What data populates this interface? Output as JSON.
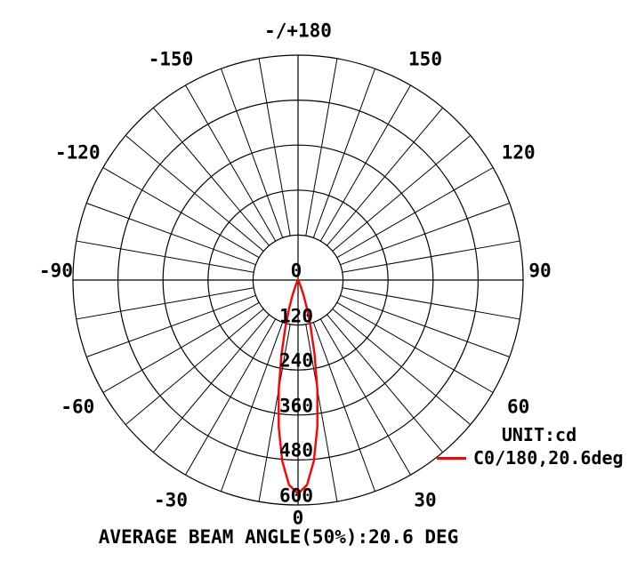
{
  "caption": {
    "text": "AVERAGE BEAM ANGLE(50%):20.6 DEG"
  },
  "legend": {
    "unit_label": "UNIT:cd",
    "series_label": "C0/180,20.6deg",
    "swatch_color": "#ff0000"
  },
  "colors": {
    "grid": "#000000",
    "text": "#000000",
    "curve": "#ff0000"
  },
  "polar": {
    "angle_labels": [
      {
        "angle_deg": 0,
        "text": "0"
      },
      {
        "angle_deg": 30,
        "text": "30"
      },
      {
        "angle_deg": 60,
        "text": "60"
      },
      {
        "angle_deg": 90,
        "text": "90"
      },
      {
        "angle_deg": 120,
        "text": "120"
      },
      {
        "angle_deg": 150,
        "text": "150"
      },
      {
        "angle_deg": 180,
        "text": "-/+180"
      },
      {
        "angle_deg": -30,
        "text": "-30"
      },
      {
        "angle_deg": -60,
        "text": "-60"
      },
      {
        "angle_deg": -90,
        "text": "-90"
      },
      {
        "angle_deg": -120,
        "text": "-120"
      },
      {
        "angle_deg": -150,
        "text": "-150"
      }
    ],
    "radial_labels": [
      {
        "value": 0,
        "text": "0"
      },
      {
        "value": 120,
        "text": "120"
      },
      {
        "value": 240,
        "text": "240"
      },
      {
        "value": 360,
        "text": "360"
      },
      {
        "value": 480,
        "text": "480"
      },
      {
        "value": 600,
        "text": "600"
      }
    ]
  },
  "chart_data": {
    "type": "line",
    "plot_style": "polar",
    "title": "",
    "unit": "cd",
    "zero_direction": "down",
    "angle_range_deg": [
      -180,
      180
    ],
    "angle_grid_step_deg": 10,
    "angle_label_step_deg": 30,
    "radial_ticks": [
      0,
      120,
      240,
      360,
      480,
      600
    ],
    "rmax": 600,
    "grid": true,
    "legend_position": "right-bottom",
    "average_beam_angle_50pct": "20.6 DEG",
    "series": [
      {
        "name": "C0/180,20.6deg",
        "color": "#ff0000",
        "peak_intensity_cd": 570,
        "angles_deg": [
          -40,
          -35,
          -30,
          -27.5,
          -25,
          -22.5,
          -20,
          -17.5,
          -15,
          -12.5,
          -10,
          -7.5,
          -5,
          -2.5,
          0,
          2.5,
          5,
          7.5,
          10,
          12.5,
          15,
          17.5,
          20,
          22.5,
          25,
          27.5,
          30,
          35,
          40
        ],
        "intensities_cd": [
          0,
          1,
          2,
          4,
          10,
          21,
          42,
          77,
          131,
          205,
          297,
          395,
          484,
          547,
          570,
          547,
          484,
          395,
          297,
          205,
          131,
          77,
          42,
          21,
          10,
          4,
          2,
          1,
          0
        ]
      }
    ]
  }
}
